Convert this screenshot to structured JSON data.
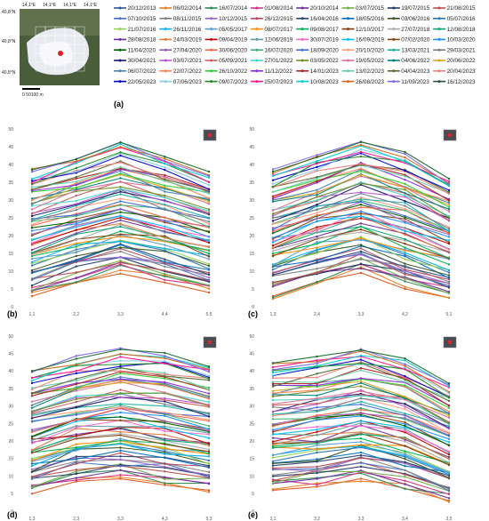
{
  "map": {
    "lat_labels": [
      "40,8°N",
      "40,8°N",
      "40,8°N"
    ],
    "lon_labels": [
      "14,1°E",
      "14,1°E",
      "14,1°E",
      "14,1°E"
    ],
    "scalebar": "0  50100 m",
    "panel_label": "(a)"
  },
  "legend": {
    "dates": [
      "20/12/2013",
      "06/02/2014",
      "16/07/2014",
      "01/08/2014",
      "20/10/2014",
      "03/07/2015",
      "19/07/2015",
      "21/08/2015",
      "07/10/2015",
      "08/11/2015",
      "10/12/2015",
      "26/12/2015",
      "16/04/2016",
      "18/05/2016",
      "03/06/2016",
      "05/07/2016",
      "21/07/2016",
      "26/11/2016",
      "05/05/2017",
      "08/07/2017",
      "09/08/2017",
      "12/10/2017",
      "27/07/2018",
      "12/08/2018",
      "28/08/2018",
      "24/03/2019",
      "09/04/2019",
      "12/06/2019",
      "30/07/2019",
      "16/09/2019",
      "07/02/2020",
      "10/03/2020",
      "11/04/2020",
      "27/04/2020",
      "30/06/2020",
      "16/07/2020",
      "18/09/2020",
      "20/10/2020",
      "13/03/2021",
      "29/03/2021",
      "30/04/2021",
      "03/07/2021",
      "05/09/2021",
      "27/01/2022",
      "03/05/2022",
      "19/05/2022",
      "04/06/2022",
      "20/06/2022",
      "06/07/2022",
      "22/07/2022",
      "26/10/2022",
      "11/12/2022",
      "14/01/2023",
      "13/02/2023",
      "04/04/2023",
      "20/04/2023",
      "22/05/2023",
      "07/06/2023",
      "09/07/2023",
      "25/07/2023",
      "10/08/2023",
      "26/08/2023",
      "11/09/2023",
      "16/12/2023"
    ],
    "colors": [
      "#2f5597",
      "#e67e22",
      "#2e8b57",
      "#d63384",
      "#7030a0",
      "#70ad47",
      "#1f3864",
      "#c0504d",
      "#4472c4",
      "#7f7f7f",
      "#9966cc",
      "#b5495b",
      "#264478",
      "#0070c0",
      "#375623",
      "#2e75b6",
      "#92d050",
      "#00b0f0",
      "#5b9bd5",
      "#ff8c00",
      "#00b050",
      "#843c0c",
      "#a9a9a9",
      "#00a86b",
      "#6f3198",
      "#e07b39",
      "#c00000",
      "#5f9ea0",
      "#ff66cc",
      "#00bfff",
      "#8b4513",
      "#1e90ff",
      "#006400",
      "#9b59b6",
      "#ff6347",
      "#3cb371",
      "#4169e1",
      "#ffa07a",
      "#20b2aa",
      "#708090",
      "#191970",
      "#ba55d3",
      "#cd5c5c",
      "#48d1cc",
      "#6b8e23",
      "#db7093",
      "#008080",
      "#daa520",
      "#4682b4",
      "#ff7f50",
      "#32cd32",
      "#8a2be2",
      "#b22222",
      "#66cdaa",
      "#556b2f",
      "#f08080",
      "#0000cd",
      "#87ceeb",
      "#228b22",
      "#ff1493",
      "#00ced1",
      "#d2691e",
      "#7b68ee",
      "#2f4f4f"
    ]
  },
  "chart_data": [
    {
      "type": "line",
      "label": "(b)",
      "categories": [
        "1,1",
        "2,2",
        "3,3",
        "4,4",
        "5,5"
      ],
      "ylim": [
        0,
        50
      ],
      "yticks": [
        0,
        5,
        10,
        15,
        20,
        25,
        30,
        35,
        40,
        45,
        50
      ],
      "top_line": [
        38.5,
        41.5,
        46.2,
        42.2,
        38.0
      ],
      "bottom_line": [
        3.0,
        6.8,
        9.3,
        6.8,
        4.0
      ]
    },
    {
      "type": "line",
      "label": "(c)",
      "categories": [
        "1,3",
        "2,4",
        "3,3",
        "4,2",
        "5,1"
      ],
      "ylim": [
        0,
        50
      ],
      "yticks": [
        0,
        5,
        10,
        15,
        20,
        25,
        30,
        35,
        40,
        45,
        50
      ],
      "top_line": [
        38.0,
        42.0,
        46.3,
        43.5,
        36.0
      ],
      "bottom_line": [
        3.0,
        7.0,
        9.5,
        5.0,
        2.5
      ]
    },
    {
      "type": "line",
      "label": "(d)",
      "categories": [
        "1,3",
        "2,3",
        "3,3",
        "4,3",
        "5,3"
      ],
      "ylim": [
        0,
        50
      ],
      "yticks": [
        0,
        5,
        10,
        15,
        20,
        25,
        30,
        35,
        40,
        45,
        50
      ],
      "top_line": [
        40.0,
        43.5,
        46.2,
        45.2,
        41.3
      ],
      "bottom_line": [
        5.0,
        8.5,
        9.3,
        7.5,
        6.0
      ]
    },
    {
      "type": "line",
      "label": "(e)",
      "categories": [
        "3,1",
        "3,2",
        "3,3",
        "3,4",
        "3,5"
      ],
      "ylim": [
        0,
        50
      ],
      "yticks": [
        0,
        5,
        10,
        15,
        20,
        25,
        30,
        35,
        40,
        45,
        50
      ],
      "top_line": [
        42.3,
        44.2,
        46.0,
        43.6,
        36.5
      ],
      "bottom_line": [
        6.0,
        7.0,
        9.3,
        6.5,
        3.0
      ]
    }
  ]
}
